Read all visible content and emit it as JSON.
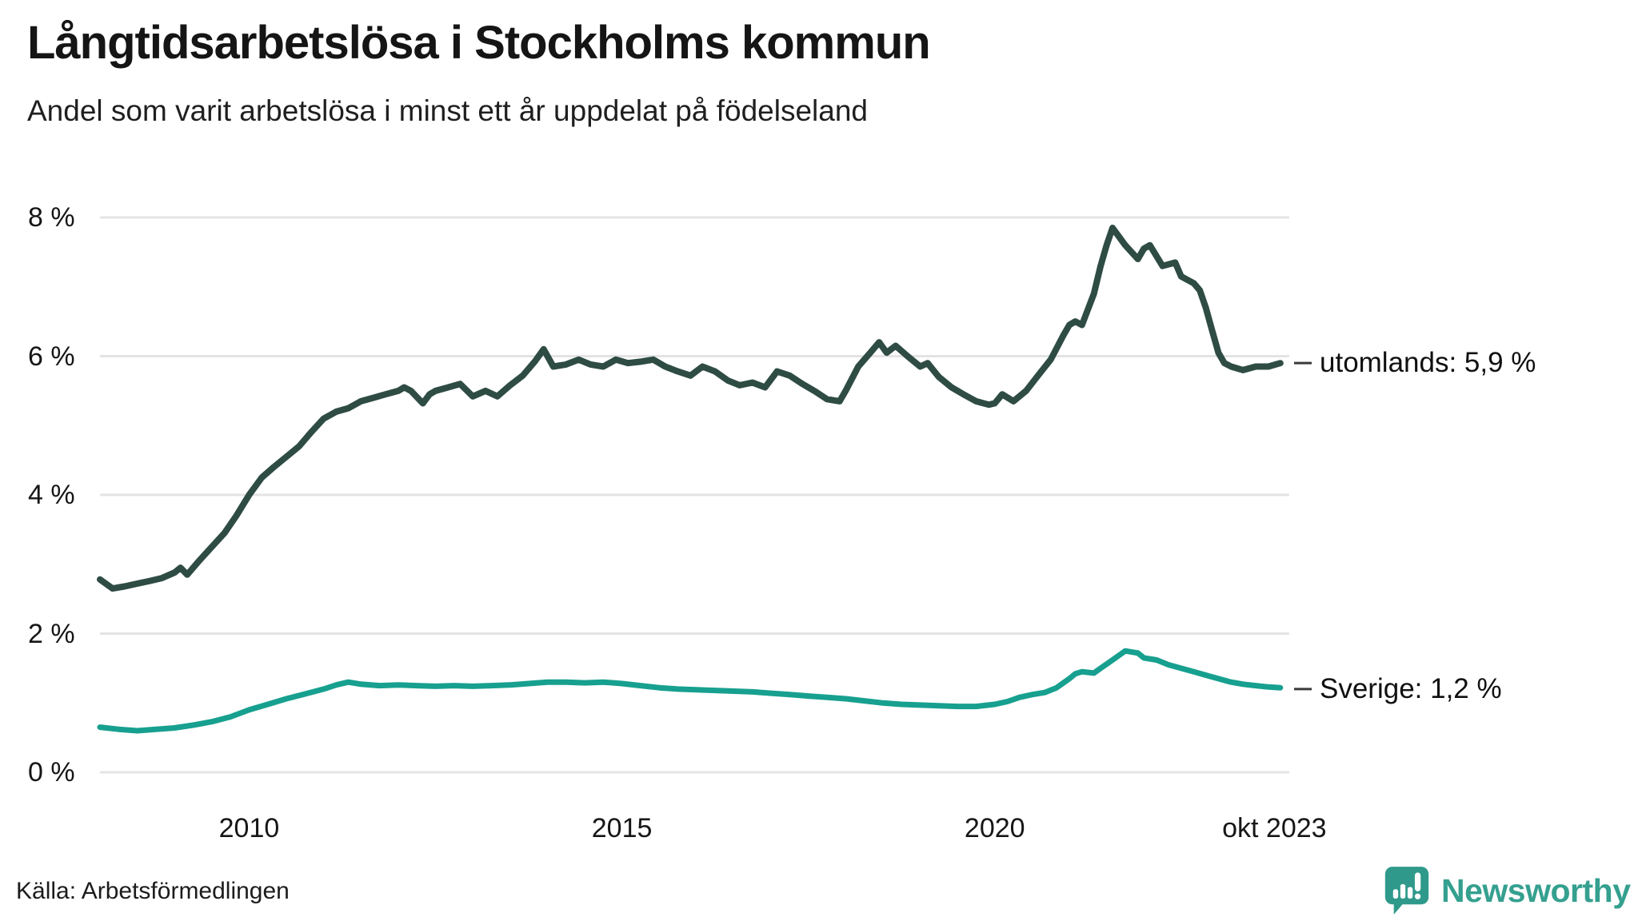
{
  "title": "Långtidsarbetslösa i Stockholms kommun",
  "subtitle": "Andel som varit arbetslösa i minst ett år uppdelat på födelseland",
  "source": "Källa: Arbetsförmedlingen",
  "brand": {
    "name": "Newsworthy",
    "color": "#35a08f"
  },
  "chart_data": {
    "type": "line",
    "title": "Långtidsarbetslösa i Stockholms kommun",
    "subtitle": "Andel som varit arbetslösa i minst ett år uppdelat på födelseland",
    "x_unit": "decimal_year",
    "xlim": [
      2008.0,
      2023.95
    ],
    "ylim": [
      0,
      8
    ],
    "grid": true,
    "gridline_color": "#e4e4e6",
    "yticks": [
      {
        "value": 0,
        "label": "0 %"
      },
      {
        "value": 2,
        "label": "2 %"
      },
      {
        "value": 4,
        "label": "4 %"
      },
      {
        "value": 6,
        "label": "6 %"
      },
      {
        "value": 8,
        "label": "8 %"
      }
    ],
    "xticks": [
      {
        "value": 2010.0,
        "label": "2010"
      },
      {
        "value": 2015.0,
        "label": "2015"
      },
      {
        "value": 2020.0,
        "label": "2020"
      },
      {
        "value": 2023.75,
        "label": "okt 2023"
      }
    ],
    "legend_position": "end-of-line-labels",
    "series": [
      {
        "name": "utomlands",
        "end_label": "utomlands: 5,9 %",
        "end_value": 5.9,
        "color": "#2e4c43",
        "x": [
          2008.0,
          2008.17,
          2008.33,
          2008.5,
          2008.67,
          2008.83,
          2009.0,
          2009.08,
          2009.17,
          2009.33,
          2009.5,
          2009.67,
          2009.83,
          2010.0,
          2010.17,
          2010.33,
          2010.5,
          2010.67,
          2010.83,
          2011.0,
          2011.17,
          2011.33,
          2011.5,
          2011.67,
          2011.83,
          2012.0,
          2012.08,
          2012.17,
          2012.33,
          2012.42,
          2012.5,
          2012.67,
          2012.83,
          2013.0,
          2013.17,
          2013.33,
          2013.5,
          2013.67,
          2013.83,
          2013.95,
          2014.08,
          2014.25,
          2014.42,
          2014.58,
          2014.75,
          2014.92,
          2015.08,
          2015.25,
          2015.42,
          2015.58,
          2015.75,
          2015.92,
          2016.08,
          2016.25,
          2016.42,
          2016.58,
          2016.75,
          2016.92,
          2017.08,
          2017.25,
          2017.42,
          2017.58,
          2017.75,
          2017.92,
          2018.0,
          2018.17,
          2018.33,
          2018.45,
          2018.55,
          2018.67,
          2018.83,
          2019.0,
          2019.1,
          2019.25,
          2019.42,
          2019.58,
          2019.75,
          2019.92,
          2020.0,
          2020.1,
          2020.25,
          2020.42,
          2020.58,
          2020.75,
          2020.92,
          2021.0,
          2021.08,
          2021.17,
          2021.33,
          2021.42,
          2021.5,
          2021.58,
          2021.75,
          2021.92,
          2022.0,
          2022.08,
          2022.25,
          2022.42,
          2022.5,
          2022.67,
          2022.75,
          2022.83,
          2022.92,
          2023.0,
          2023.08,
          2023.17,
          2023.33,
          2023.5,
          2023.67,
          2023.83
        ],
        "y": [
          2.78,
          2.65,
          2.68,
          2.72,
          2.76,
          2.8,
          2.88,
          2.95,
          2.85,
          3.05,
          3.25,
          3.45,
          3.7,
          4.0,
          4.25,
          4.4,
          4.55,
          4.7,
          4.9,
          5.1,
          5.2,
          5.25,
          5.35,
          5.4,
          5.45,
          5.5,
          5.55,
          5.5,
          5.32,
          5.45,
          5.5,
          5.55,
          5.6,
          5.42,
          5.5,
          5.42,
          5.58,
          5.72,
          5.92,
          6.1,
          5.85,
          5.88,
          5.95,
          5.88,
          5.85,
          5.95,
          5.9,
          5.92,
          5.95,
          5.85,
          5.78,
          5.72,
          5.85,
          5.78,
          5.65,
          5.58,
          5.62,
          5.55,
          5.78,
          5.72,
          5.6,
          5.5,
          5.38,
          5.35,
          5.5,
          5.85,
          6.05,
          6.2,
          6.05,
          6.15,
          6.0,
          5.85,
          5.9,
          5.7,
          5.55,
          5.45,
          5.35,
          5.3,
          5.32,
          5.45,
          5.35,
          5.5,
          5.72,
          5.95,
          6.3,
          6.45,
          6.5,
          6.45,
          6.9,
          7.3,
          7.6,
          7.85,
          7.6,
          7.4,
          7.55,
          7.6,
          7.3,
          7.35,
          7.15,
          7.05,
          6.95,
          6.7,
          6.35,
          6.05,
          5.9,
          5.85,
          5.8,
          5.85,
          5.85,
          5.9
        ]
      },
      {
        "name": "Sverige",
        "end_label": "Sverige: 1,2 %",
        "end_value": 1.2,
        "color": "#17a08f",
        "x": [
          2008.0,
          2008.25,
          2008.5,
          2008.75,
          2009.0,
          2009.25,
          2009.5,
          2009.75,
          2010.0,
          2010.25,
          2010.5,
          2010.75,
          2011.0,
          2011.17,
          2011.33,
          2011.5,
          2011.75,
          2012.0,
          2012.25,
          2012.5,
          2012.75,
          2013.0,
          2013.25,
          2013.5,
          2013.75,
          2014.0,
          2014.25,
          2014.5,
          2014.75,
          2015.0,
          2015.25,
          2015.5,
          2015.75,
          2016.0,
          2016.25,
          2016.5,
          2016.75,
          2017.0,
          2017.25,
          2017.5,
          2017.75,
          2018.0,
          2018.25,
          2018.5,
          2018.75,
          2019.0,
          2019.25,
          2019.5,
          2019.75,
          2020.0,
          2020.17,
          2020.33,
          2020.5,
          2020.67,
          2020.83,
          2021.0,
          2021.08,
          2021.17,
          2021.33,
          2021.42,
          2021.58,
          2021.75,
          2021.92,
          2022.0,
          2022.17,
          2022.33,
          2022.5,
          2022.67,
          2022.83,
          2023.0,
          2023.17,
          2023.33,
          2023.5,
          2023.67,
          2023.83
        ],
        "y": [
          0.65,
          0.62,
          0.6,
          0.62,
          0.64,
          0.68,
          0.73,
          0.8,
          0.9,
          0.98,
          1.06,
          1.13,
          1.2,
          1.26,
          1.3,
          1.27,
          1.25,
          1.26,
          1.25,
          1.24,
          1.25,
          1.24,
          1.25,
          1.26,
          1.28,
          1.3,
          1.3,
          1.29,
          1.3,
          1.28,
          1.25,
          1.22,
          1.2,
          1.19,
          1.18,
          1.17,
          1.16,
          1.14,
          1.12,
          1.1,
          1.08,
          1.06,
          1.03,
          1.0,
          0.98,
          0.97,
          0.96,
          0.95,
          0.95,
          0.98,
          1.02,
          1.08,
          1.12,
          1.15,
          1.22,
          1.35,
          1.42,
          1.45,
          1.43,
          1.5,
          1.62,
          1.75,
          1.72,
          1.65,
          1.62,
          1.55,
          1.5,
          1.45,
          1.4,
          1.35,
          1.3,
          1.27,
          1.25,
          1.23,
          1.22
        ]
      }
    ]
  }
}
